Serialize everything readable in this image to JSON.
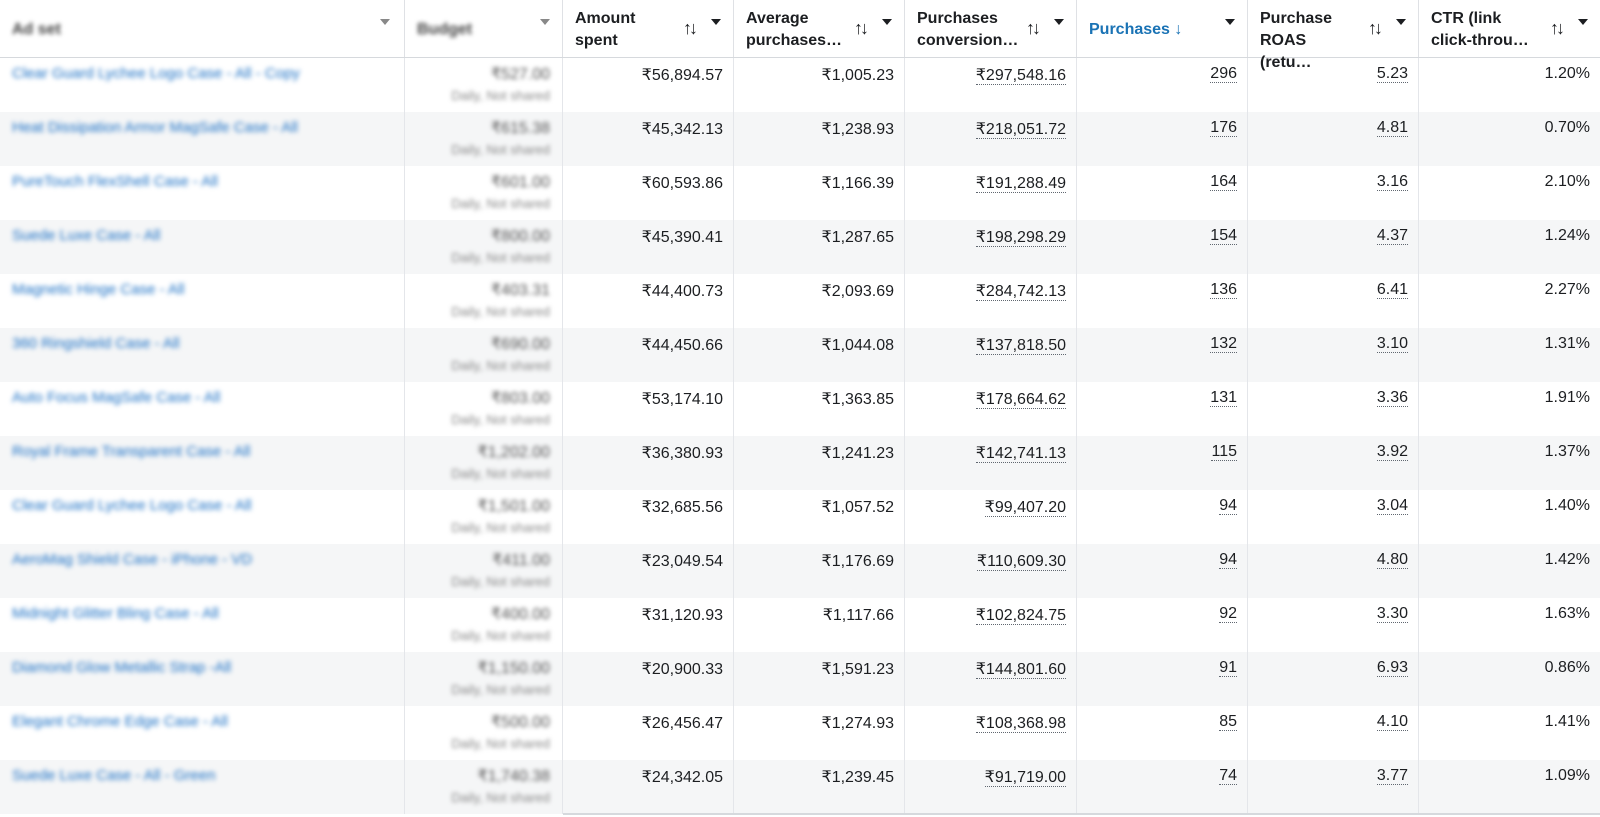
{
  "headers": {
    "adset": "Ad set",
    "budget": "Budget",
    "amount_spent": "Amount spent",
    "avg_purchases": "Average purchases…",
    "purchases_conversion": "Purchases conversion…",
    "purchases": "Purchases",
    "purchase_roas": "Purchase ROAS (retu…",
    "ctr": "CTR (link click-throu…",
    "sort_glyph": "↑↓",
    "sorted_glyph": "↓"
  },
  "rows": [
    {
      "name": "Clear Guard Lychee Logo Case - All - Copy",
      "budget": "₹527.00",
      "budget_sub": "Daily, Not shared",
      "amount_spent": "₹56,894.57",
      "avg": "₹1,005.23",
      "conv": "₹297,548.16",
      "purchases": "296",
      "roas": "5.23",
      "ctr": "1.20%"
    },
    {
      "name": "Heat Dissipation Armor MagSafe Case - All",
      "budget": "₹615.38",
      "budget_sub": "Daily, Not shared",
      "amount_spent": "₹45,342.13",
      "avg": "₹1,238.93",
      "conv": "₹218,051.72",
      "purchases": "176",
      "roas": "4.81",
      "ctr": "0.70%"
    },
    {
      "name": "PureTouch FlexShell Case - All",
      "budget": "₹601.00",
      "budget_sub": "Daily, Not shared",
      "amount_spent": "₹60,593.86",
      "avg": "₹1,166.39",
      "conv": "₹191,288.49",
      "purchases": "164",
      "roas": "3.16",
      "ctr": "2.10%"
    },
    {
      "name": "Suede Luxe Case - All",
      "budget": "₹800.00",
      "budget_sub": "Daily, Not shared",
      "amount_spent": "₹45,390.41",
      "avg": "₹1,287.65",
      "conv": "₹198,298.29",
      "purchases": "154",
      "roas": "4.37",
      "ctr": "1.24%"
    },
    {
      "name": "Magnetic Hinge Case - All",
      "budget": "₹403.31",
      "budget_sub": "Daily, Not shared",
      "amount_spent": "₹44,400.73",
      "avg": "₹2,093.69",
      "conv": "₹284,742.13",
      "purchases": "136",
      "roas": "6.41",
      "ctr": "2.27%"
    },
    {
      "name": "360 Ringshield Case - All",
      "budget": "₹690.00",
      "budget_sub": "Daily, Not shared",
      "amount_spent": "₹44,450.66",
      "avg": "₹1,044.08",
      "conv": "₹137,818.50",
      "purchases": "132",
      "roas": "3.10",
      "ctr": "1.31%"
    },
    {
      "name": "Auto Focus MagSafe Case - All",
      "budget": "₹803.00",
      "budget_sub": "Daily, Not shared",
      "amount_spent": "₹53,174.10",
      "avg": "₹1,363.85",
      "conv": "₹178,664.62",
      "purchases": "131",
      "roas": "3.36",
      "ctr": "1.91%"
    },
    {
      "name": "Royal Frame Transparent Case - All",
      "budget": "₹1,202.00",
      "budget_sub": "Daily, Not shared",
      "amount_spent": "₹36,380.93",
      "avg": "₹1,241.23",
      "conv": "₹142,741.13",
      "purchases": "115",
      "roas": "3.92",
      "ctr": "1.37%"
    },
    {
      "name": "Clear Guard Lychee Logo Case - All",
      "budget": "₹1,501.00",
      "budget_sub": "Daily, Not shared",
      "amount_spent": "₹32,685.56",
      "avg": "₹1,057.52",
      "conv": "₹99,407.20",
      "purchases": "94",
      "roas": "3.04",
      "ctr": "1.40%"
    },
    {
      "name": "AeroMag Shield Case - iPhone - VD",
      "budget": "₹411.00",
      "budget_sub": "Daily, Not shared",
      "amount_spent": "₹23,049.54",
      "avg": "₹1,176.69",
      "conv": "₹110,609.30",
      "purchases": "94",
      "roas": "4.80",
      "ctr": "1.42%"
    },
    {
      "name": "Midnight Glitter Bling Case - All",
      "budget": "₹400.00",
      "budget_sub": "Daily, Not shared",
      "amount_spent": "₹31,120.93",
      "avg": "₹1,117.66",
      "conv": "₹102,824.75",
      "purchases": "92",
      "roas": "3.30",
      "ctr": "1.63%"
    },
    {
      "name": "Diamond Glow Metallic Strap -All",
      "budget": "₹1,150.00",
      "budget_sub": "Daily, Not shared",
      "amount_spent": "₹20,900.33",
      "avg": "₹1,591.23",
      "conv": "₹144,801.60",
      "purchases": "91",
      "roas": "6.93",
      "ctr": "0.86%"
    },
    {
      "name": "Elegant Chrome Edge Case - All",
      "budget": "₹500.00",
      "budget_sub": "Daily, Not shared",
      "amount_spent": "₹26,456.47",
      "avg": "₹1,274.93",
      "conv": "₹108,368.98",
      "purchases": "85",
      "roas": "4.10",
      "ctr": "1.41%"
    },
    {
      "name": "Suede Luxe Case - All - Green",
      "budget": "₹1,740.38",
      "budget_sub": "Daily, Not shared",
      "amount_spent": "₹24,342.05",
      "avg": "₹1,239.45",
      "conv": "₹91,719.00",
      "purchases": "74",
      "roas": "3.77",
      "ctr": "1.09%"
    }
  ]
}
